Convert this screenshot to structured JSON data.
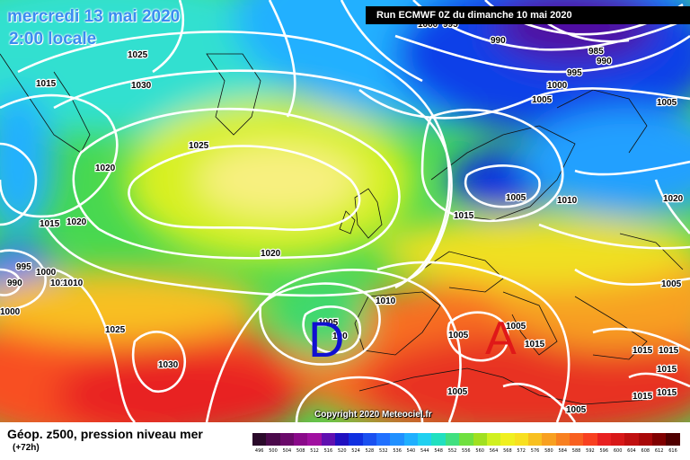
{
  "header": {
    "date": "mercredi 13 mai 2020",
    "time": "2:00 locale",
    "run": "Run ECMWF 0Z du dimanche 10 mai 2020"
  },
  "copyright": "Copyright 2020 Meteociel.fr",
  "footer": {
    "title": "Géop. z500, pression niveau mer",
    "subtitle": "(+72h)"
  },
  "centers": [
    {
      "label": "D",
      "type": "low",
      "color": "#1010d0"
    },
    {
      "label": "A",
      "type": "high",
      "color": "#e01818"
    }
  ],
  "isobar_labels": [
    "1025",
    "1015",
    "1030",
    "1000",
    "995",
    "990",
    "985",
    "990",
    "995",
    "1000",
    "1005",
    "1005",
    "1025",
    "1020",
    "1020",
    "1015",
    "1015",
    "1005",
    "1010",
    "1020",
    "995",
    "1000",
    "990",
    "1010",
    "1010",
    "1000",
    "1025",
    "1030",
    "1010",
    "1005",
    "100",
    "1020",
    "1005",
    "1015",
    "1015",
    "1015",
    "1005",
    "1015",
    "1015",
    "1015",
    "1005",
    "1005",
    "1005"
  ],
  "scale": {
    "labels": [
      "496",
      "500",
      "504",
      "508",
      "512",
      "516",
      "520",
      "524",
      "528",
      "532",
      "536",
      "540",
      "544",
      "548",
      "552",
      "556",
      "560",
      "564",
      "568",
      "572",
      "576",
      "580",
      "584",
      "588",
      "592",
      "596",
      "600",
      "604",
      "608",
      "612",
      "616"
    ],
    "colors": [
      "#2a0a2a",
      "#4b0a4b",
      "#6a0a6a",
      "#8a0a8a",
      "#a010a0",
      "#6010b0",
      "#2010c0",
      "#1030e0",
      "#1a50f0",
      "#2070ff",
      "#2090ff",
      "#20b0ff",
      "#20d0f0",
      "#20e0c0",
      "#40e080",
      "#70e040",
      "#a0e020",
      "#d0f020",
      "#f0f020",
      "#f8e020",
      "#f8c020",
      "#f8a020",
      "#f88020",
      "#f86020",
      "#f84020",
      "#e82020",
      "#d81818",
      "#c01010",
      "#a80808",
      "#800000",
      "#500000"
    ]
  }
}
